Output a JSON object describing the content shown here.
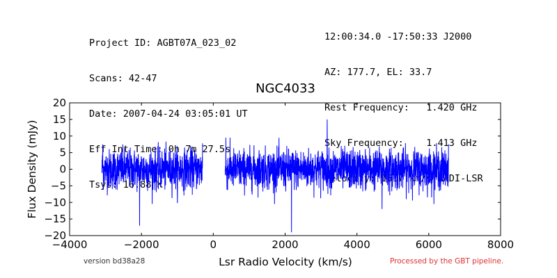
{
  "header": {
    "left": [
      "Project ID: AGBT07A_023_02",
      "Scans: 42-47",
      "Date: 2007-04-24 03:05:01 UT",
      "Eff Int Time: 0h 7m 27.5s",
      "Tsys: 16.88 K"
    ],
    "right": [
      "12:00:34.0 -17:50:33 J2000",
      "AZ: 177.7, EL: 33.7",
      "Rest Frequency:   1.420 GHz",
      "Sky Frequency:    1.413 GHz",
      "Velocity: 1617 km/s RADI-LSR"
    ]
  },
  "footer": {
    "version": "version bd38a28",
    "processed": "Processed by the GBT pipeline."
  },
  "chart_data": {
    "type": "line",
    "title": "NGC4033",
    "xlabel": "Lsr Radio Velocity (km/s)",
    "ylabel": "Flux Density (mJy)",
    "xlim": [
      -4000,
      8000
    ],
    "ylim": [
      -20,
      20
    ],
    "xticks": [
      -4000,
      -2000,
      0,
      2000,
      4000,
      6000,
      8000
    ],
    "yticks": [
      -20,
      -15,
      -10,
      -5,
      0,
      5,
      10,
      15,
      20
    ],
    "grid": false,
    "line_color": "#0000ff",
    "series": [
      {
        "segments": [
          {
            "x_range": [
              -3100,
              -300
            ],
            "noise_rms": 3.0,
            "spikes": [
              [
                -3080,
                7.5
              ],
              [
                -2050,
                -17
              ],
              [
                -300,
                7.8
              ]
            ]
          },
          {
            "x_range": [
              330,
              6550
            ],
            "noise_rms": 3.0,
            "spikes": [
              [
                350,
                9.5
              ],
              [
                2180,
                -19
              ],
              [
                3170,
                15
              ],
              [
                4700,
                -12
              ],
              [
                6550,
                7.5
              ]
            ]
          }
        ]
      }
    ]
  }
}
